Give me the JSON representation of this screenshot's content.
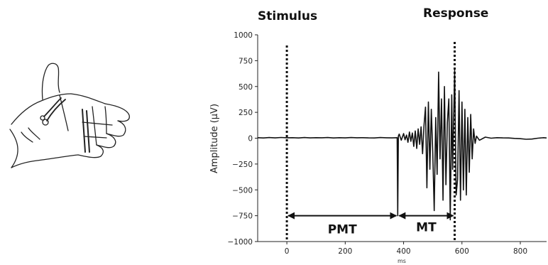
{
  "labels": {
    "stimulus": "Stimulus",
    "response": "Response",
    "pmt": "PMT",
    "mt": "MT"
  },
  "chart_data": {
    "type": "line",
    "xlabel": "ms",
    "ylabel": "Amplitude (μV)",
    "xlim": [
      -100,
      890
    ],
    "ylim": [
      -1000,
      1000
    ],
    "xticks": [
      0,
      200,
      400,
      600,
      800
    ],
    "yticks": [
      1000,
      750,
      500,
      250,
      0,
      -250,
      -500,
      -750,
      -1000
    ],
    "markers": [
      {
        "name": "Stimulus",
        "x": 0
      },
      {
        "name": "Response",
        "x": 575
      }
    ],
    "intervals": [
      {
        "name": "PMT",
        "from": 0,
        "to": 380
      },
      {
        "name": "MT",
        "from": 380,
        "to": 575
      }
    ],
    "series": [
      {
        "x": [
          -100,
          -80,
          -60,
          -40,
          -20,
          0,
          20,
          40,
          60,
          80,
          100,
          120,
          140,
          160,
          180,
          200,
          220,
          240,
          260,
          280,
          300,
          320,
          340,
          360,
          378,
          380,
          382,
          385,
          392,
          400,
          405,
          410,
          415,
          420,
          425,
          430,
          435,
          440,
          445,
          450,
          455,
          460,
          465,
          470,
          475,
          480,
          485,
          490,
          495,
          500,
          505,
          510,
          515,
          520,
          525,
          530,
          535,
          540,
          545,
          550,
          555,
          560,
          565,
          568,
          572,
          575,
          580,
          585,
          590,
          595,
          600,
          605,
          610,
          615,
          620,
          625,
          630,
          635,
          640,
          645,
          650,
          660,
          680,
          700,
          720,
          740,
          760,
          780,
          800,
          820,
          840,
          860,
          880,
          890
        ],
        "values": [
          5,
          2,
          6,
          3,
          7,
          4,
          5,
          2,
          6,
          3,
          5,
          4,
          6,
          2,
          5,
          3,
          6,
          4,
          5,
          3,
          2,
          6,
          4,
          3,
          5,
          -750,
          20,
          40,
          -20,
          45,
          -15,
          30,
          -40,
          60,
          -30,
          50,
          -80,
          70,
          -100,
          90,
          -60,
          110,
          -150,
          120,
          300,
          -480,
          350,
          -300,
          280,
          -150,
          -700,
          200,
          -350,
          640,
          -200,
          380,
          -600,
          500,
          -450,
          150,
          380,
          -790,
          420,
          -300,
          250,
          660,
          -550,
          -400,
          460,
          -600,
          350,
          -500,
          280,
          -550,
          200,
          -330,
          230,
          -200,
          90,
          -50,
          20,
          -20,
          10,
          0,
          5,
          3,
          2,
          -2,
          -5,
          -10,
          -8,
          0,
          5,
          2
        ]
      }
    ]
  }
}
